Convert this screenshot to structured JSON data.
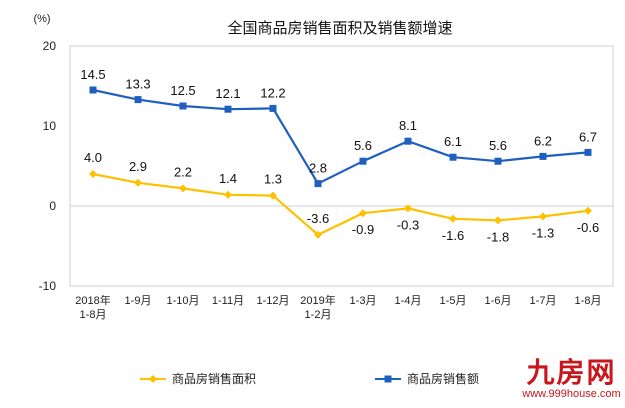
{
  "chart_data": {
    "type": "line",
    "title": "全国商品房销售面积及销售额增速",
    "ylabel": "(%)",
    "xlabel": "",
    "ylim": [
      -10,
      20
    ],
    "yticks": [
      "20",
      "10",
      "0",
      "-10"
    ],
    "ytick_values": [
      20,
      10,
      0,
      -10
    ],
    "grid": false,
    "legend_position": "bottom",
    "categories": [
      [
        "2018年",
        "1-8月"
      ],
      [
        "1-9月"
      ],
      [
        "1-10月"
      ],
      [
        "1-11月"
      ],
      [
        "1-12月"
      ],
      [
        "2019年",
        "1-2月"
      ],
      [
        "1-3月"
      ],
      [
        "1-4月"
      ],
      [
        "1-5月"
      ],
      [
        "1-6月"
      ],
      [
        "1-7月"
      ],
      [
        "1-8月"
      ]
    ],
    "series": [
      {
        "name": "商品房销售面积",
        "color": "#FFC000",
        "marker": "diamond",
        "values": [
          4.0,
          2.9,
          2.2,
          1.4,
          1.3,
          -3.6,
          -0.9,
          -0.3,
          -1.6,
          -1.8,
          -1.3,
          -0.6
        ],
        "labels": [
          "4.0",
          "2.9",
          "2.2",
          "1.4",
          "1.3",
          "-3.6",
          "-0.9",
          "-0.3",
          "-1.6",
          "-1.8",
          "-1.3",
          "-0.6"
        ]
      },
      {
        "name": "商品房销售额",
        "color": "#1F5FBF",
        "marker": "square",
        "values": [
          14.5,
          13.3,
          12.5,
          12.1,
          12.2,
          2.8,
          5.6,
          8.1,
          6.1,
          5.6,
          6.2,
          6.7
        ],
        "labels": [
          "14.5",
          "13.3",
          "12.5",
          "12.1",
          "12.2",
          "2.8",
          "5.6",
          "8.1",
          "6.1",
          "5.6",
          "6.2",
          "6.7"
        ]
      }
    ]
  },
  "watermark": {
    "logo": "九房网",
    "url": "www.999house.com"
  }
}
